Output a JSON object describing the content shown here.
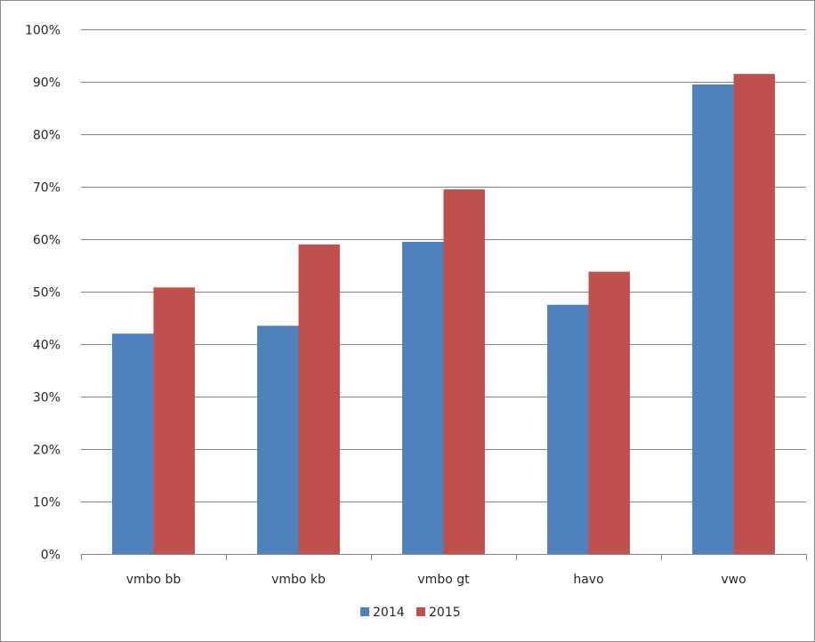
{
  "chart_data": {
    "type": "bar",
    "categories": [
      "vmbo bb",
      "vmbo kb",
      "vmbo gt",
      "havo",
      "vwo"
    ],
    "series": [
      {
        "name": "2014",
        "color": "#4F81BD",
        "values": [
          42,
          43.5,
          59.5,
          47.5,
          89.5
        ]
      },
      {
        "name": "2015",
        "color": "#C0504D",
        "values": [
          50.8,
          59,
          69.5,
          53.8,
          91.5
        ]
      }
    ],
    "yticks": [
      "0%",
      "10%",
      "20%",
      "30%",
      "40%",
      "50%",
      "60%",
      "70%",
      "80%",
      "90%",
      "100%"
    ],
    "ylim": [
      0,
      100
    ],
    "grid": true,
    "legend": "bottom",
    "title": "",
    "xlabel": "",
    "ylabel": ""
  }
}
